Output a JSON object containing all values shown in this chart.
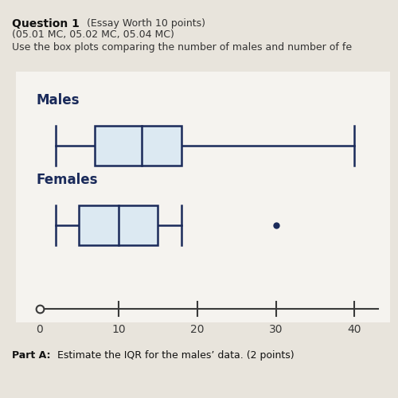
{
  "males": {
    "min": 2,
    "q1": 7,
    "median": 13,
    "q3": 18,
    "max": 40,
    "label": "Males",
    "fliers": []
  },
  "females": {
    "min": 2,
    "q1": 5,
    "median": 10,
    "q3": 15,
    "max": 18,
    "label": "Females",
    "fliers": [
      30
    ]
  },
  "xlim": [
    0,
    43
  ],
  "xticks": [
    0,
    10,
    20,
    30,
    40
  ],
  "box_facecolor": "#dce9f2",
  "box_edgecolor": "#1a2a5a",
  "line_color": "#1a2a5a",
  "label_color": "#1a2a5a",
  "label_fontsize": 12,
  "label_fontweight": "bold",
  "bg_color": "#e8e4dc",
  "chart_bg": "#f5f3ef",
  "axis_color": "#3a3a3a",
  "tick_color": "#3a3a3a",
  "tick_fontsize": 10,
  "figsize": [
    5.0,
    5.0
  ],
  "dpi": 100,
  "header_line1": "Question 1",
  "header_line1_suffix": " (Essay Worth 10 points)",
  "header_line2": "(05.01 MC, 05.02 MC, 05.04 MC)",
  "header_line3": "Use the box plots comparing the number of males and number of fe",
  "footer": "Part A:",
  "footer_suffix": " Estimate the IQR for the males’ data. (2 points)"
}
